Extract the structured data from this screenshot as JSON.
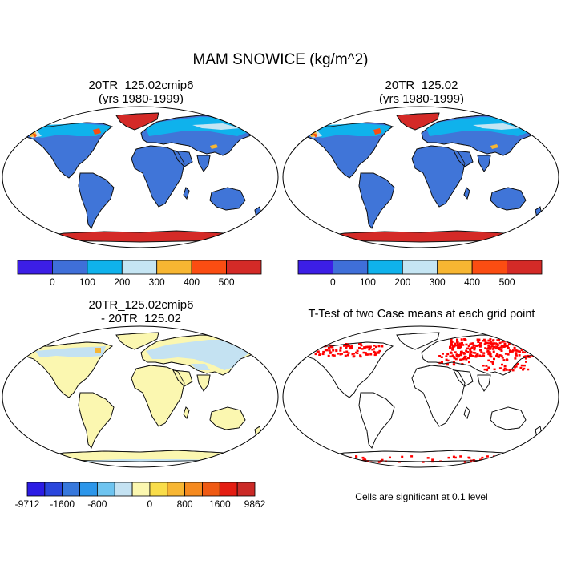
{
  "title": "MAM SNOWICE (kg/m^2)",
  "panels": [
    {
      "id": "tl",
      "title_line1": "20TR_125.02cmip6",
      "title_line2": "(yrs 1980-1999)"
    },
    {
      "id": "tr",
      "title_line1": "20TR_125.02",
      "title_line2": "(yrs 1980-1999)"
    },
    {
      "id": "bl",
      "title_line1": "20TR_125.02cmip6",
      "title_line2": "- 20TR_125.02"
    },
    {
      "id": "br",
      "title_line1": "T-Test of two Case means at each grid point"
    }
  ],
  "colorbars": {
    "snow": {
      "colors": [
        "#3c1ee6",
        "#3f6fd9",
        "#0fb2ec",
        "#c5e5f3",
        "#f7b632",
        "#fb4d12",
        "#d42a27"
      ],
      "labels": [
        "0",
        "100",
        "200",
        "300",
        "400",
        "500"
      ]
    },
    "diff": {
      "colors": [
        "#2c1ce4",
        "#2a46dc",
        "#3778dc",
        "#2c96ea",
        "#6ec4f0",
        "#c4e2f2",
        "#fbf7b0",
        "#f9dd4a",
        "#f7b633",
        "#f58a1f",
        "#ef5a13",
        "#e41d12",
        "#cb2a27"
      ],
      "labels": [
        "-9712",
        "-1600",
        "-800",
        "0",
        "800",
        "1600",
        "9862"
      ]
    }
  },
  "note": "Cells are significant at 0.1 level",
  "colors": {
    "land_base": "#4075d8",
    "antarctica": "#d42a27",
    "diff_land": "#fbf7b0",
    "diff_snow": "#c4e2f2",
    "signif": "#ff0000"
  }
}
